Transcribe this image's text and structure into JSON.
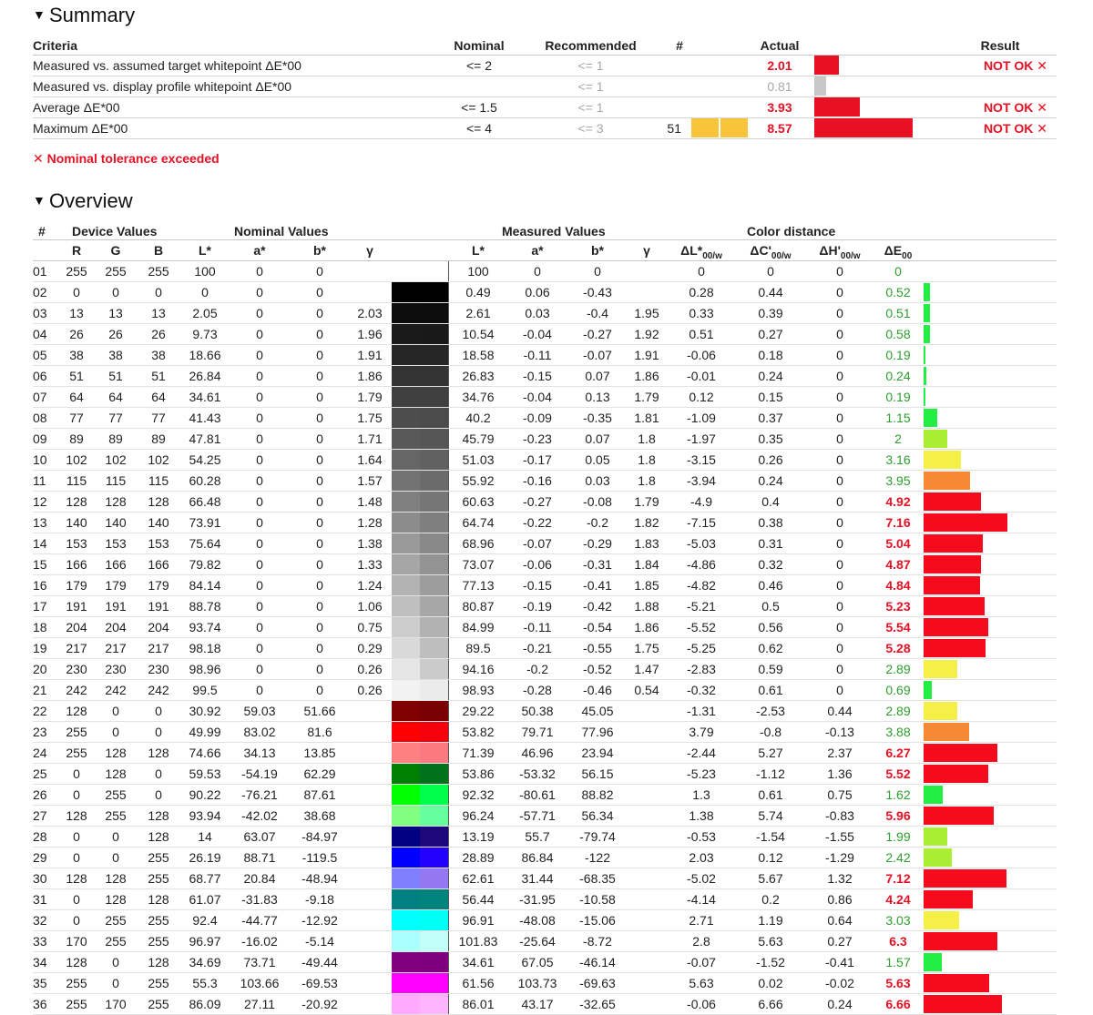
{
  "summary": {
    "title": "Summary",
    "headers": {
      "criteria": "Criteria",
      "nominal": "Nominal",
      "recommended": "Recommended",
      "hash": "#",
      "actual": "Actual",
      "result": "Result"
    },
    "rows": [
      {
        "criteria": "Measured vs. assumed target whitepoint ΔE*00",
        "nominal": "<= 2",
        "recommended": "<= 1",
        "hash": "",
        "actual": "2.01",
        "actual_bad": true,
        "bar": 0.25,
        "bar_color": "#e81123",
        "result": "NOT OK ✕"
      },
      {
        "criteria": "Measured vs. display profile whitepoint ΔE*00",
        "nominal": "",
        "recommended": "<= 1",
        "hash": "",
        "actual": "0.81",
        "actual_bad": false,
        "bar": 0.12,
        "bar_color": "#c8c8c8",
        "result": ""
      },
      {
        "criteria": "Average ΔE*00",
        "nominal": "<= 1.5",
        "recommended": "<= 1",
        "hash": "",
        "actual": "3.93",
        "actual_bad": true,
        "bar": 0.46,
        "bar_color": "#e81123",
        "result": "NOT OK ✕"
      },
      {
        "criteria": "Maximum ΔE*00",
        "nominal": "<= 4",
        "recommended": "<= 3",
        "hash": "51",
        "actual": "8.57",
        "actual_bad": true,
        "bar": 1.0,
        "bar_color": "#e81123",
        "result": "NOT OK ✕"
      }
    ],
    "note": "✕ Nominal tolerance exceeded"
  },
  "overview": {
    "title": "Overview",
    "group_headers": {
      "hash": "#",
      "device": "Device Values",
      "nominal": "Nominal Values",
      "measured": "Measured Values",
      "distance": "Color distance"
    },
    "col_headers": {
      "r": "R",
      "g": "G",
      "b": "B",
      "nl": "L*",
      "na": "a*",
      "nb": "b*",
      "ng": "γ",
      "ml": "L*",
      "ma": "a*",
      "mb": "b*",
      "mg": "γ",
      "dl": "ΔL*",
      "dc": "ΔC'",
      "dh": "ΔH'",
      "de": "ΔE",
      "sub": "00/w",
      "sub2": "00"
    },
    "rows": [
      [
        "01",
        "255",
        "255",
        "255",
        "100",
        "0",
        "0",
        "",
        "100",
        "0",
        "0",
        "",
        "0",
        "0",
        "0",
        "0"
      ],
      [
        "02",
        "0",
        "0",
        "0",
        "0",
        "0",
        "0",
        "",
        "0.49",
        "0.06",
        "-0.43",
        "",
        "0.28",
        "0.44",
        "0",
        "0.52"
      ],
      [
        "03",
        "13",
        "13",
        "13",
        "2.05",
        "0",
        "0",
        "2.03",
        "2.61",
        "0.03",
        "-0.4",
        "1.95",
        "0.33",
        "0.39",
        "0",
        "0.51"
      ],
      [
        "04",
        "26",
        "26",
        "26",
        "9.73",
        "0",
        "0",
        "1.96",
        "10.54",
        "-0.04",
        "-0.27",
        "1.92",
        "0.51",
        "0.27",
        "0",
        "0.58"
      ],
      [
        "05",
        "38",
        "38",
        "38",
        "18.66",
        "0",
        "0",
        "1.91",
        "18.58",
        "-0.11",
        "-0.07",
        "1.91",
        "-0.06",
        "0.18",
        "0",
        "0.19"
      ],
      [
        "06",
        "51",
        "51",
        "51",
        "26.84",
        "0",
        "0",
        "1.86",
        "26.83",
        "-0.15",
        "0.07",
        "1.86",
        "-0.01",
        "0.24",
        "0",
        "0.24"
      ],
      [
        "07",
        "64",
        "64",
        "64",
        "34.61",
        "0",
        "0",
        "1.79",
        "34.76",
        "-0.04",
        "0.13",
        "1.79",
        "0.12",
        "0.15",
        "0",
        "0.19"
      ],
      [
        "08",
        "77",
        "77",
        "77",
        "41.43",
        "0",
        "0",
        "1.75",
        "40.2",
        "-0.09",
        "-0.35",
        "1.81",
        "-1.09",
        "0.37",
        "0",
        "1.15"
      ],
      [
        "09",
        "89",
        "89",
        "89",
        "47.81",
        "0",
        "0",
        "1.71",
        "45.79",
        "-0.23",
        "0.07",
        "1.8",
        "-1.97",
        "0.35",
        "0",
        "2"
      ],
      [
        "10",
        "102",
        "102",
        "102",
        "54.25",
        "0",
        "0",
        "1.64",
        "51.03",
        "-0.17",
        "0.05",
        "1.8",
        "-3.15",
        "0.26",
        "0",
        "3.16"
      ],
      [
        "11",
        "115",
        "115",
        "115",
        "60.28",
        "0",
        "0",
        "1.57",
        "55.92",
        "-0.16",
        "0.03",
        "1.8",
        "-3.94",
        "0.24",
        "0",
        "3.95"
      ],
      [
        "12",
        "128",
        "128",
        "128",
        "66.48",
        "0",
        "0",
        "1.48",
        "60.63",
        "-0.27",
        "-0.08",
        "1.79",
        "-4.9",
        "0.4",
        "0",
        "4.92"
      ],
      [
        "13",
        "140",
        "140",
        "140",
        "73.91",
        "0",
        "0",
        "1.28",
        "64.74",
        "-0.22",
        "-0.2",
        "1.82",
        "-7.15",
        "0.38",
        "0",
        "7.16"
      ],
      [
        "14",
        "153",
        "153",
        "153",
        "75.64",
        "0",
        "0",
        "1.38",
        "68.96",
        "-0.07",
        "-0.29",
        "1.83",
        "-5.03",
        "0.31",
        "0",
        "5.04"
      ],
      [
        "15",
        "166",
        "166",
        "166",
        "79.82",
        "0",
        "0",
        "1.33",
        "73.07",
        "-0.06",
        "-0.31",
        "1.84",
        "-4.86",
        "0.32",
        "0",
        "4.87"
      ],
      [
        "16",
        "179",
        "179",
        "179",
        "84.14",
        "0",
        "0",
        "1.24",
        "77.13",
        "-0.15",
        "-0.41",
        "1.85",
        "-4.82",
        "0.46",
        "0",
        "4.84"
      ],
      [
        "17",
        "191",
        "191",
        "191",
        "88.78",
        "0",
        "0",
        "1.06",
        "80.87",
        "-0.19",
        "-0.42",
        "1.88",
        "-5.21",
        "0.5",
        "0",
        "5.23"
      ],
      [
        "18",
        "204",
        "204",
        "204",
        "93.74",
        "0",
        "0",
        "0.75",
        "84.99",
        "-0.11",
        "-0.54",
        "1.86",
        "-5.52",
        "0.56",
        "0",
        "5.54"
      ],
      [
        "19",
        "217",
        "217",
        "217",
        "98.18",
        "0",
        "0",
        "0.29",
        "89.5",
        "-0.21",
        "-0.55",
        "1.75",
        "-5.25",
        "0.62",
        "0",
        "5.28"
      ],
      [
        "20",
        "230",
        "230",
        "230",
        "98.96",
        "0",
        "0",
        "0.26",
        "94.16",
        "-0.2",
        "-0.52",
        "1.47",
        "-2.83",
        "0.59",
        "0",
        "2.89"
      ],
      [
        "21",
        "242",
        "242",
        "242",
        "99.5",
        "0",
        "0",
        "0.26",
        "98.93",
        "-0.28",
        "-0.46",
        "0.54",
        "-0.32",
        "0.61",
        "0",
        "0.69"
      ],
      [
        "22",
        "128",
        "0",
        "0",
        "30.92",
        "59.03",
        "51.66",
        "",
        "29.22",
        "50.38",
        "45.05",
        "",
        "-1.31",
        "-2.53",
        "0.44",
        "2.89"
      ],
      [
        "23",
        "255",
        "0",
        "0",
        "49.99",
        "83.02",
        "81.6",
        "",
        "53.82",
        "79.71",
        "77.96",
        "",
        "3.79",
        "-0.8",
        "-0.13",
        "3.88"
      ],
      [
        "24",
        "255",
        "128",
        "128",
        "74.66",
        "34.13",
        "13.85",
        "",
        "71.39",
        "46.96",
        "23.94",
        "",
        "-2.44",
        "5.27",
        "2.37",
        "6.27"
      ],
      [
        "25",
        "0",
        "128",
        "0",
        "59.53",
        "-54.19",
        "62.29",
        "",
        "53.86",
        "-53.32",
        "56.15",
        "",
        "-5.23",
        "-1.12",
        "1.36",
        "5.52"
      ],
      [
        "26",
        "0",
        "255",
        "0",
        "90.22",
        "-76.21",
        "87.61",
        "",
        "92.32",
        "-80.61",
        "88.82",
        "",
        "1.3",
        "0.61",
        "0.75",
        "1.62"
      ],
      [
        "27",
        "128",
        "255",
        "128",
        "93.94",
        "-42.02",
        "38.68",
        "",
        "96.24",
        "-57.71",
        "56.34",
        "",
        "1.38",
        "5.74",
        "-0.83",
        "5.96"
      ],
      [
        "28",
        "0",
        "0",
        "128",
        "14",
        "63.07",
        "-84.97",
        "",
        "13.19",
        "55.7",
        "-79.74",
        "",
        "-0.53",
        "-1.54",
        "-1.55",
        "1.99"
      ],
      [
        "29",
        "0",
        "0",
        "255",
        "26.19",
        "88.71",
        "-119.5",
        "",
        "28.89",
        "86.84",
        "-122",
        "",
        "2.03",
        "0.12",
        "-1.29",
        "2.42"
      ],
      [
        "30",
        "128",
        "128",
        "255",
        "68.77",
        "20.84",
        "-48.94",
        "",
        "62.61",
        "31.44",
        "-68.35",
        "",
        "-5.02",
        "5.67",
        "1.32",
        "7.12"
      ],
      [
        "31",
        "0",
        "128",
        "128",
        "61.07",
        "-31.83",
        "-9.18",
        "",
        "56.44",
        "-31.95",
        "-10.58",
        "",
        "-4.14",
        "0.2",
        "0.86",
        "4.24"
      ],
      [
        "32",
        "0",
        "255",
        "255",
        "92.4",
        "-44.77",
        "-12.92",
        "",
        "96.91",
        "-48.08",
        "-15.06",
        "",
        "2.71",
        "1.19",
        "0.64",
        "3.03"
      ],
      [
        "33",
        "170",
        "255",
        "255",
        "96.97",
        "-16.02",
        "-5.14",
        "",
        "101.83",
        "-25.64",
        "-8.72",
        "",
        "2.8",
        "5.63",
        "0.27",
        "6.3"
      ],
      [
        "34",
        "128",
        "0",
        "128",
        "34.69",
        "73.71",
        "-49.44",
        "",
        "34.61",
        "67.05",
        "-46.14",
        "",
        "-0.07",
        "-1.52",
        "-0.41",
        "1.57"
      ],
      [
        "35",
        "255",
        "0",
        "255",
        "55.3",
        "103.66",
        "-69.53",
        "",
        "61.56",
        "103.73",
        "-69.63",
        "",
        "5.63",
        "0.02",
        "-0.02",
        "5.63"
      ],
      [
        "36",
        "255",
        "170",
        "255",
        "86.09",
        "27.11",
        "-20.92",
        "",
        "86.01",
        "43.17",
        "-32.65",
        "",
        "-0.06",
        "6.66",
        "0.24",
        "6.66"
      ]
    ],
    "swatches": [
      [
        "#ffffff",
        "#ffffff"
      ],
      [
        "#000000",
        "#000000"
      ],
      [
        "#0d0d0d",
        "#0c0c0c"
      ],
      [
        "#1a1a1a",
        "#191919"
      ],
      [
        "#262626",
        "#262626"
      ],
      [
        "#333333",
        "#333333"
      ],
      [
        "#404040",
        "#404040"
      ],
      [
        "#4d4d4d",
        "#4b4b4b"
      ],
      [
        "#595959",
        "#565656"
      ],
      [
        "#666666",
        "#616161"
      ],
      [
        "#737373",
        "#6b6b6b"
      ],
      [
        "#808080",
        "#767676"
      ],
      [
        "#8c8c8c",
        "#7f7f7f"
      ],
      [
        "#999999",
        "#898989"
      ],
      [
        "#a6a6a6",
        "#939393"
      ],
      [
        "#b3b3b3",
        "#9d9d9d"
      ],
      [
        "#bfbfbf",
        "#a7a7a7"
      ],
      [
        "#cccccc",
        "#b2b2b2"
      ],
      [
        "#d9d9d9",
        "#bebebe"
      ],
      [
        "#e6e6e6",
        "#cbcbcb"
      ],
      [
        "#f2f2f2",
        "#ebebeb"
      ],
      [
        "#800000",
        "#7a0101"
      ],
      [
        "#ff0000",
        "#f6000b"
      ],
      [
        "#ff8080",
        "#fa7a7f"
      ],
      [
        "#008000",
        "#00721c"
      ],
      [
        "#00ff00",
        "#00ff4a"
      ],
      [
        "#80ff80",
        "#66ff9e"
      ],
      [
        "#000080",
        "#1c087a"
      ],
      [
        "#0000ff",
        "#2400ff"
      ],
      [
        "#8080ff",
        "#9478f2"
      ],
      [
        "#008080",
        "#00857e"
      ],
      [
        "#00ffff",
        "#00fff5"
      ],
      [
        "#aaffff",
        "#c2fff8"
      ],
      [
        "#800080",
        "#7f007e"
      ],
      [
        "#ff00ff",
        "#ff00ff"
      ],
      [
        "#ffaaff",
        "#ffb5ff"
      ]
    ],
    "bar_colors": {
      "green": "#22ee44",
      "yellowgreen": "#aaee33",
      "yellow": "#f4f047",
      "orange": "#f68933",
      "red": "#f40b1c"
    }
  }
}
